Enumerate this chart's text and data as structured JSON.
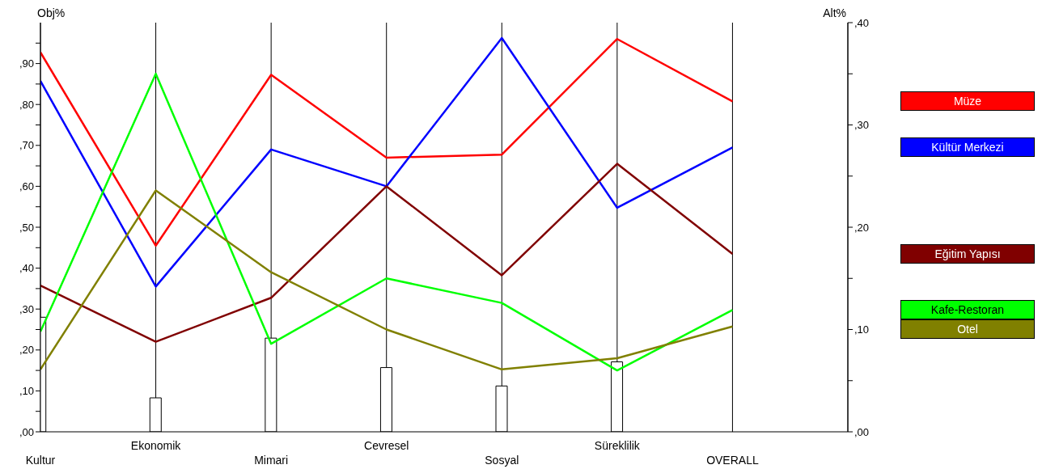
{
  "chart_data": {
    "type": "line",
    "ylabel": "Obj%",
    "y2label": "Alt%",
    "categories": [
      "Kultur",
      "Ekonomik",
      "Mimari",
      "Cevresel",
      "Sosyal",
      "Süreklilik",
      "OVERALL"
    ],
    "series": [
      {
        "type": "bar",
        "color": "#ffffff",
        "values": [
          28,
          8.3,
          22.9,
          15.7,
          11.2,
          17.1,
          null
        ]
      },
      {
        "name": "Müze",
        "color": "#ff0000",
        "axis": "y2",
        "values": [
          37.1,
          18.2,
          34.9,
          26.8,
          27.1,
          38.4,
          32.3
        ]
      },
      {
        "name": "Kültür Merkezi",
        "color": "#0000ff",
        "axis": "y2",
        "values": [
          34.3,
          14.2,
          27.6,
          24.0,
          38.5,
          21.9,
          27.8
        ]
      },
      {
        "name": "Eğitim Yapısı",
        "color": "#800000",
        "axis": "y2",
        "values": [
          14.3,
          8.8,
          13.1,
          24.0,
          15.3,
          26.2,
          17.4
        ]
      },
      {
        "name": "Kafe-Restoran",
        "color": "#00ff00",
        "axis": "y2",
        "values": [
          9.8,
          35.0,
          8.6,
          15.0,
          12.6,
          6.0,
          11.9
        ]
      },
      {
        "name": "Otel",
        "color": "#808000",
        "axis": "y2",
        "values": [
          6.1,
          23.6,
          15.6,
          10.0,
          6.1,
          7.2,
          10.3
        ]
      }
    ],
    "ylim": [
      0,
      100
    ],
    "yticks": [
      {
        "value": 0,
        "label": ",00"
      },
      {
        "value": 5,
        "label": null
      },
      {
        "value": 10,
        "label": ",10"
      },
      {
        "value": 15,
        "label": null
      },
      {
        "value": 20,
        "label": ",20"
      },
      {
        "value": 25,
        "label": null
      },
      {
        "value": 30,
        "label": ",30"
      },
      {
        "value": 35,
        "label": null
      },
      {
        "value": 40,
        "label": ",40"
      },
      {
        "value": 45,
        "label": null
      },
      {
        "value": 50,
        "label": ",50"
      },
      {
        "value": 55,
        "label": null
      },
      {
        "value": 60,
        "label": ",60"
      },
      {
        "value": 65,
        "label": null
      },
      {
        "value": 70,
        "label": ",70"
      },
      {
        "value": 75,
        "label": null
      },
      {
        "value": 80,
        "label": ",80"
      },
      {
        "value": 85,
        "label": null
      },
      {
        "value": 90,
        "label": ",90"
      },
      {
        "value": 95,
        "label": null
      }
    ],
    "y2lim": [
      0,
      40
    ],
    "y2ticks": [
      {
        "value": 0,
        "label": ",00"
      },
      {
        "value": 5,
        "label": null
      },
      {
        "value": 10,
        "label": ",10"
      },
      {
        "value": 15,
        "label": null
      },
      {
        "value": 20,
        "label": ",20"
      },
      {
        "value": 25,
        "label": null
      },
      {
        "value": 30,
        "label": ",30"
      },
      {
        "value": 35,
        "label": null
      },
      {
        "value": 40,
        "label": ",40"
      }
    ],
    "grid": "x",
    "legend": "right",
    "marker": "none",
    "line_style": "solid"
  }
}
